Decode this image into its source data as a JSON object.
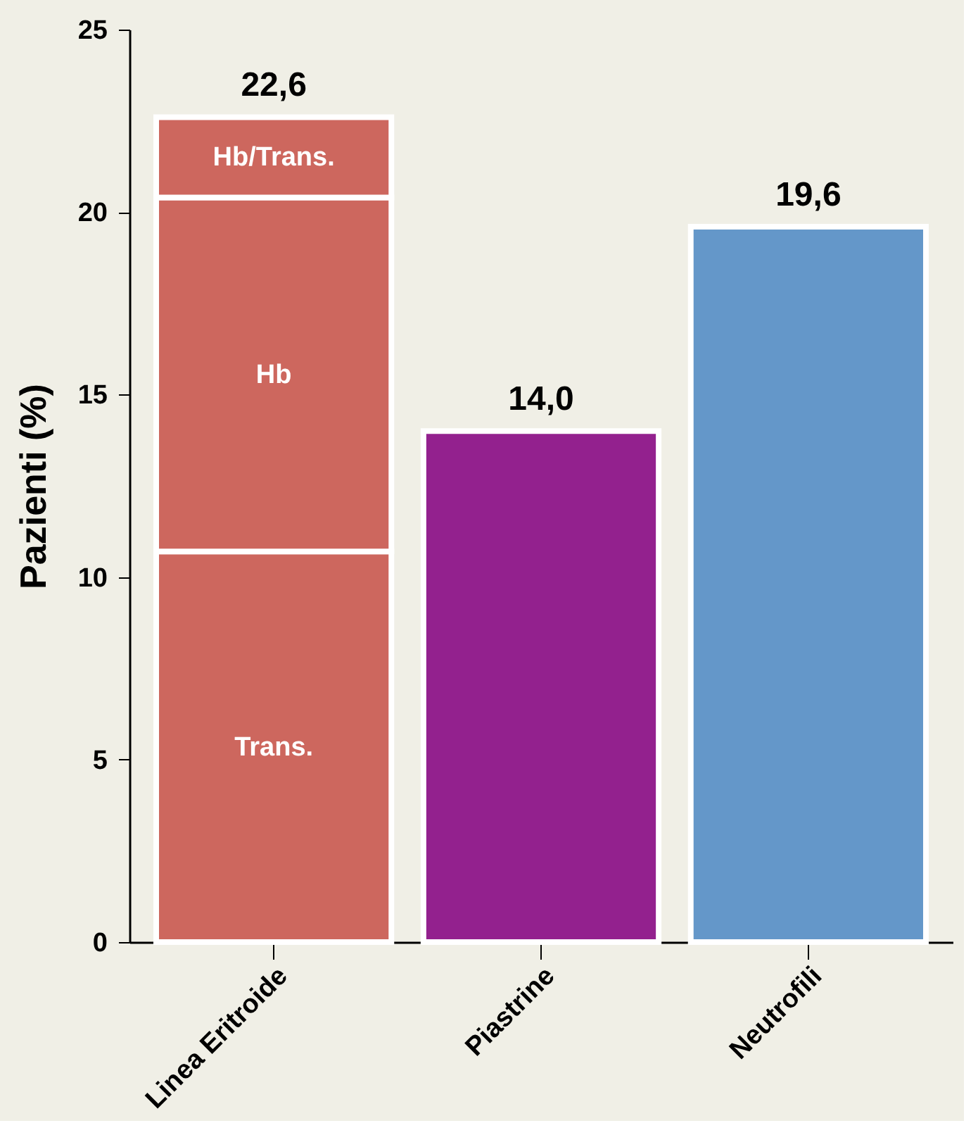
{
  "chart_data": {
    "type": "bar",
    "stacked": true,
    "ylabel": "Pazienti (%)",
    "categories": [
      "Linea Eritroide",
      "Piastrine",
      "Neutrofili"
    ],
    "series": [
      {
        "name": "Trans.",
        "color": "#cd675e",
        "values": [
          10.7,
          null,
          null
        ]
      },
      {
        "name": "Hb",
        "color": "#cd675e",
        "values": [
          9.7,
          null,
          null
        ]
      },
      {
        "name": "Hb/Trans.",
        "color": "#cd675e",
        "values": [
          2.2,
          null,
          null
        ]
      },
      {
        "colors": [
          "#cd675e",
          "#93218e",
          "#6497c9"
        ],
        "values": [
          null,
          14.0,
          19.6
        ]
      }
    ],
    "totals": [
      "22,6",
      "14,0",
      "19,6"
    ],
    "ylim": [
      0,
      25
    ],
    "yticks": [
      0,
      5,
      10,
      15,
      20,
      25
    ],
    "grid": false
  }
}
